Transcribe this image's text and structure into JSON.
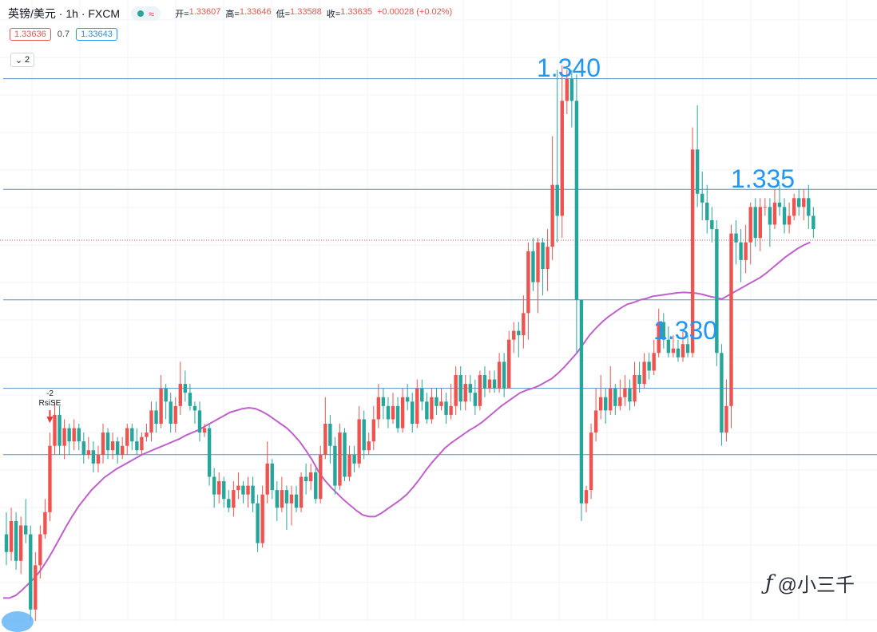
{
  "header": {
    "symbol": "英镑/美元",
    "separator": "·",
    "interval": "1h",
    "exchange": "FXCM",
    "status_wave": "≈",
    "ohlc": [
      {
        "label": "开=",
        "value": "1.33607"
      },
      {
        "label": "高=",
        "value": "1.33646"
      },
      {
        "label": "低=",
        "value": "1.33588"
      },
      {
        "label": "收=",
        "value": "1.33635"
      },
      {
        "label": "",
        "value": "+0.00028 (+0.02%)"
      }
    ]
  },
  "quote": {
    "bid": "1.33636",
    "spread": "0.7",
    "ask": "1.33643"
  },
  "indicators_toggle": {
    "icon": "chevron-down-icon",
    "count": "2"
  },
  "colors": {
    "up": "#ef5350",
    "down": "#26a69a",
    "ma": "#c061cb",
    "hline": "#2962ff",
    "level_text": "#2196f3"
  },
  "annotations": {
    "rsi_count": "-2",
    "rsi_label": "RsiSE"
  },
  "levels": [
    {
      "label": "1.340"
    },
    {
      "label": "1.335"
    },
    {
      "label": "1.330"
    }
  ],
  "watermark": {
    "icon": "logo-icon",
    "text": "@小三千"
  },
  "chart_data": {
    "type": "candlestick",
    "candles": [
      [
        1.3297,
        1.3293,
        1.3302,
        1.329
      ],
      [
        1.3293,
        1.33,
        1.3303,
        1.3291
      ],
      [
        1.33,
        1.3291,
        1.3302,
        1.3289
      ],
      [
        1.3291,
        1.3299,
        1.3301,
        1.3288
      ],
      [
        1.3299,
        1.3297,
        1.3305,
        1.3295
      ],
      [
        1.3297,
        1.328,
        1.3299,
        1.3275
      ],
      [
        1.328,
        1.329,
        1.3293,
        1.3276
      ],
      [
        1.329,
        1.3297,
        1.3299,
        1.3287
      ],
      [
        1.3297,
        1.3302,
        1.3305,
        1.3296
      ],
      [
        1.3302,
        1.3317,
        1.332,
        1.33
      ],
      [
        1.3317,
        1.3324,
        1.3327,
        1.3315
      ],
      [
        1.3324,
        1.3317,
        1.3326,
        1.3315
      ],
      [
        1.3317,
        1.3321,
        1.3323,
        1.3314
      ],
      [
        1.3321,
        1.3318,
        1.3322,
        1.3315
      ],
      [
        1.3318,
        1.3321,
        1.3323,
        1.3316
      ],
      [
        1.3321,
        1.3318,
        1.3322,
        1.3316
      ],
      [
        1.3318,
        1.3315,
        1.332,
        1.3313
      ],
      [
        1.3315,
        1.3316,
        1.3319,
        1.3314
      ],
      [
        1.3316,
        1.3313,
        1.3318,
        1.3311
      ],
      [
        1.3313,
        1.3315,
        1.3317,
        1.3311
      ],
      [
        1.3315,
        1.332,
        1.3322,
        1.3313
      ],
      [
        1.332,
        1.3316,
        1.3321,
        1.3314
      ],
      [
        1.3316,
        1.3318,
        1.332,
        1.3314
      ],
      [
        1.3318,
        1.3315,
        1.3319,
        1.3313
      ],
      [
        1.3315,
        1.3317,
        1.3319,
        1.3314
      ],
      [
        1.3317,
        1.3321,
        1.3322,
        1.3315
      ],
      [
        1.3321,
        1.3318,
        1.3322,
        1.3316
      ],
      [
        1.3318,
        1.3316,
        1.3321,
        1.3315
      ],
      [
        1.3316,
        1.3319,
        1.332,
        1.3315
      ],
      [
        1.3319,
        1.332,
        1.3322,
        1.3318
      ],
      [
        1.332,
        1.3325,
        1.3327,
        1.3318
      ],
      [
        1.3325,
        1.3322,
        1.3327,
        1.332
      ],
      [
        1.3322,
        1.333,
        1.3333,
        1.3321
      ],
      [
        1.333,
        1.3327,
        1.3331,
        1.3323
      ],
      [
        1.3327,
        1.3322,
        1.3329,
        1.332
      ],
      [
        1.3322,
        1.3326,
        1.3328,
        1.332
      ],
      [
        1.3326,
        1.3331,
        1.3336,
        1.3324
      ],
      [
        1.3331,
        1.3329,
        1.3334,
        1.3327
      ],
      [
        1.3329,
        1.3326,
        1.3331,
        1.3325
      ],
      [
        1.3326,
        1.3325,
        1.3327,
        1.3322
      ],
      [
        1.3325,
        1.332,
        1.3327,
        1.3318
      ],
      [
        1.332,
        1.3321,
        1.3322,
        1.3319
      ],
      [
        1.3321,
        1.331,
        1.3322,
        1.3308
      ],
      [
        1.331,
        1.3306,
        1.3312,
        1.3303
      ],
      [
        1.3306,
        1.3309,
        1.3311,
        1.3304
      ],
      [
        1.3309,
        1.3305,
        1.331,
        1.3303
      ],
      [
        1.3305,
        1.3303,
        1.3307,
        1.3302
      ],
      [
        1.3303,
        1.3307,
        1.3309,
        1.3301
      ],
      [
        1.3307,
        1.3308,
        1.3311,
        1.3305
      ],
      [
        1.3308,
        1.3306,
        1.3309,
        1.3304
      ],
      [
        1.3306,
        1.3308,
        1.331,
        1.3303
      ],
      [
        1.3308,
        1.3304,
        1.331,
        1.3302
      ],
      [
        1.3304,
        1.3295,
        1.3306,
        1.3293
      ],
      [
        1.3295,
        1.3306,
        1.3308,
        1.3294
      ],
      [
        1.3306,
        1.3313,
        1.3318,
        1.3304
      ],
      [
        1.3313,
        1.3307,
        1.3314,
        1.3305
      ],
      [
        1.3307,
        1.3303,
        1.3309,
        1.33
      ],
      [
        1.3303,
        1.3307,
        1.331,
        1.3302
      ],
      [
        1.3307,
        1.3304,
        1.3308,
        1.3298
      ],
      [
        1.3304,
        1.3306,
        1.3308,
        1.3299
      ],
      [
        1.3306,
        1.3303,
        1.3308,
        1.3302
      ],
      [
        1.3303,
        1.331,
        1.3311,
        1.3302
      ],
      [
        1.331,
        1.3309,
        1.3313,
        1.3306
      ],
      [
        1.3309,
        1.3311,
        1.3313,
        1.3307
      ],
      [
        1.3311,
        1.3305,
        1.3312,
        1.3304
      ],
      [
        1.3305,
        1.3315,
        1.3317,
        1.3304
      ],
      [
        1.3315,
        1.3322,
        1.3328,
        1.3314
      ],
      [
        1.3322,
        1.3317,
        1.3324,
        1.3313
      ],
      [
        1.3317,
        1.3308,
        1.3319,
        1.3306
      ],
      [
        1.3308,
        1.332,
        1.3322,
        1.3307
      ],
      [
        1.332,
        1.331,
        1.3321,
        1.3309
      ],
      [
        1.331,
        1.3315,
        1.3317,
        1.3309
      ],
      [
        1.3315,
        1.3313,
        1.3317,
        1.3311
      ],
      [
        1.3313,
        1.3323,
        1.3326,
        1.3312
      ],
      [
        1.3323,
        1.3316,
        1.3325,
        1.3314
      ],
      [
        1.3316,
        1.3318,
        1.332,
        1.3315
      ],
      [
        1.3318,
        1.3323,
        1.3326,
        1.3316
      ],
      [
        1.3323,
        1.3328,
        1.3331,
        1.3321
      ],
      [
        1.3328,
        1.3326,
        1.333,
        1.3323
      ],
      [
        1.3326,
        1.3323,
        1.3328,
        1.3321
      ],
      [
        1.3323,
        1.3326,
        1.3329,
        1.3322
      ],
      [
        1.3326,
        1.3321,
        1.3328,
        1.332
      ],
      [
        1.3321,
        1.3328,
        1.333,
        1.332
      ],
      [
        1.3328,
        1.3327,
        1.3331,
        1.3325
      ],
      [
        1.3327,
        1.3322,
        1.3329,
        1.332
      ],
      [
        1.3322,
        1.333,
        1.3332,
        1.3321
      ],
      [
        1.333,
        1.3327,
        1.3332,
        1.3325
      ],
      [
        1.3327,
        1.3323,
        1.3329,
        1.3322
      ],
      [
        1.3323,
        1.3328,
        1.333,
        1.3322
      ],
      [
        1.3328,
        1.3326,
        1.333,
        1.3324
      ],
      [
        1.3326,
        1.3327,
        1.333,
        1.3325
      ],
      [
        1.3327,
        1.3324,
        1.3329,
        1.3322
      ],
      [
        1.3324,
        1.3326,
        1.3331,
        1.3323
      ],
      [
        1.3326,
        1.3333,
        1.3335,
        1.3324
      ],
      [
        1.3333,
        1.3327,
        1.3335,
        1.3325
      ],
      [
        1.3327,
        1.3331,
        1.3333,
        1.3325
      ],
      [
        1.3331,
        1.3329,
        1.3333,
        1.3327
      ],
      [
        1.3329,
        1.3326,
        1.3332,
        1.3324
      ],
      [
        1.3326,
        1.3333,
        1.3334,
        1.3325
      ],
      [
        1.3333,
        1.333,
        1.3335,
        1.3328
      ],
      [
        1.333,
        1.3332,
        1.3334,
        1.3329
      ],
      [
        1.3332,
        1.333,
        1.3334,
        1.3329
      ],
      [
        1.333,
        1.3336,
        1.3338,
        1.3329
      ],
      [
        1.3336,
        1.333,
        1.3338,
        1.3328
      ],
      [
        1.333,
        1.3341,
        1.3343,
        1.333
      ],
      [
        1.3341,
        1.3343,
        1.3345,
        1.3338
      ],
      [
        1.3343,
        1.3342,
        1.3345,
        1.3337
      ],
      [
        1.3342,
        1.3347,
        1.3351,
        1.3339
      ],
      [
        1.3347,
        1.3361,
        1.3363,
        1.3341
      ],
      [
        1.3361,
        1.3354,
        1.3364,
        1.3352
      ],
      [
        1.3354,
        1.3363,
        1.3364,
        1.3347
      ],
      [
        1.3363,
        1.3357,
        1.3364,
        1.3351
      ],
      [
        1.3357,
        1.3362,
        1.3366,
        1.3352
      ],
      [
        1.3362,
        1.3376,
        1.3387,
        1.3359
      ],
      [
        1.3376,
        1.3369,
        1.3402,
        1.3363
      ],
      [
        1.3369,
        1.3395,
        1.3403,
        1.3364
      ],
      [
        1.3395,
        1.34,
        1.3402,
        1.3392
      ],
      [
        1.34,
        1.3395,
        1.3402,
        1.3389
      ],
      [
        1.3395,
        1.335,
        1.3401,
        1.3338
      ],
      [
        1.335,
        1.3304,
        1.335,
        1.33
      ],
      [
        1.3304,
        1.3307,
        1.3308,
        1.3302
      ],
      [
        1.3307,
        1.332,
        1.3322,
        1.3305
      ],
      [
        1.332,
        1.3325,
        1.333,
        1.3318
      ],
      [
        1.3325,
        1.3328,
        1.3333,
        1.3323
      ],
      [
        1.3328,
        1.3325,
        1.333,
        1.3322
      ],
      [
        1.3325,
        1.333,
        1.3335,
        1.3324
      ],
      [
        1.333,
        1.3326,
        1.3331,
        1.3324
      ],
      [
        1.3326,
        1.3328,
        1.3332,
        1.3325
      ],
      [
        1.3328,
        1.333,
        1.3333,
        1.3326
      ],
      [
        1.333,
        1.3327,
        1.3332,
        1.3325
      ],
      [
        1.3327,
        1.3333,
        1.3336,
        1.3326
      ],
      [
        1.3333,
        1.3331,
        1.3336,
        1.3329
      ],
      [
        1.3331,
        1.3336,
        1.3338,
        1.333
      ],
      [
        1.3336,
        1.3334,
        1.3338,
        1.3332
      ],
      [
        1.3334,
        1.3338,
        1.3341,
        1.3333
      ],
      [
        1.3338,
        1.3345,
        1.3348,
        1.3337
      ],
      [
        1.3345,
        1.3341,
        1.3347,
        1.3339
      ],
      [
        1.3341,
        1.3338,
        1.3344,
        1.3337
      ],
      [
        1.3338,
        1.3339,
        1.3342,
        1.3337
      ],
      [
        1.3339,
        1.3337,
        1.3341,
        1.3336
      ],
      [
        1.3337,
        1.334,
        1.3343,
        1.3336
      ],
      [
        1.334,
        1.3338,
        1.3342,
        1.3337
      ],
      [
        1.3338,
        1.3384,
        1.3389,
        1.3337
      ],
      [
        1.3384,
        1.3374,
        1.3394,
        1.3371
      ],
      [
        1.3374,
        1.3372,
        1.3379,
        1.3368
      ],
      [
        1.3372,
        1.3368,
        1.3376,
        1.3365
      ],
      [
        1.3368,
        1.3366,
        1.3371,
        1.3363
      ],
      [
        1.3366,
        1.3338,
        1.3368,
        1.3335
      ],
      [
        1.3338,
        1.332,
        1.334,
        1.3317
      ],
      [
        1.332,
        1.3326,
        1.3332,
        1.3318
      ],
      [
        1.3326,
        1.3365,
        1.3367,
        1.3321
      ],
      [
        1.3365,
        1.3363,
        1.3368,
        1.3358
      ],
      [
        1.3363,
        1.3359,
        1.3366,
        1.3354
      ],
      [
        1.3359,
        1.3363,
        1.3367,
        1.3356
      ],
      [
        1.3363,
        1.3371,
        1.3372,
        1.3358
      ],
      [
        1.3371,
        1.3364,
        1.3373,
        1.3362
      ],
      [
        1.3364,
        1.3371,
        1.3373,
        1.3361
      ],
      [
        1.3371,
        1.3371,
        1.3373,
        1.3369
      ],
      [
        1.3371,
        1.3367,
        1.3373,
        1.3362
      ],
      [
        1.3367,
        1.3372,
        1.3375,
        1.3366
      ],
      [
        1.3372,
        1.3371,
        1.3376,
        1.3369
      ],
      [
        1.3371,
        1.3367,
        1.3373,
        1.3365
      ],
      [
        1.3367,
        1.3369,
        1.3372,
        1.3365
      ],
      [
        1.3369,
        1.3373,
        1.3374,
        1.3368
      ],
      [
        1.3373,
        1.3371,
        1.3375,
        1.3369
      ],
      [
        1.3371,
        1.3373,
        1.3375,
        1.3368
      ],
      [
        1.3373,
        1.3369,
        1.3376,
        1.3366
      ],
      [
        1.3369,
        1.3366,
        1.3371,
        1.3364
      ]
    ],
    "ma_curve": [
      1.32826,
      1.32826,
      1.32832,
      1.32844,
      1.32858,
      1.32872,
      1.3289,
      1.32912,
      1.32936,
      1.32962,
      1.32988,
      1.33012,
      1.33034,
      1.33052,
      1.3307,
      1.33084,
      1.33098,
      1.33108,
      1.33118,
      1.33126,
      1.33134,
      1.33142,
      1.3315,
      1.33156,
      1.33162,
      1.33168,
      1.33174,
      1.3318,
      1.33186,
      1.33194,
      1.332,
      1.33206,
      1.33214,
      1.33222,
      1.3323,
      1.33238,
      1.33246,
      1.3325,
      1.33254,
      1.33256,
      1.33254,
      1.33248,
      1.3324,
      1.3323,
      1.3322,
      1.3321,
      1.33196,
      1.3318,
      1.3316,
      1.33138,
      1.33112,
      1.33092,
      1.33076,
      1.33062,
      1.33048,
      1.33036,
      1.33024,
      1.33014,
      1.3301,
      1.3301,
      1.33018,
      1.33028,
      1.33038,
      1.33048,
      1.3306,
      1.33076,
      1.33094,
      1.33114,
      1.33132,
      1.33148,
      1.33164,
      1.33176,
      1.33186,
      1.33196,
      1.33206,
      1.33214,
      1.33224,
      1.33236,
      1.33248,
      1.3326,
      1.3327,
      1.3328,
      1.3329,
      1.33296,
      1.333,
      1.33306,
      1.33314,
      1.33322,
      1.33334,
      1.33348,
      1.33364,
      1.3338,
      1.334,
      1.3342,
      1.33436,
      1.3345,
      1.33462,
      1.33472,
      1.33482,
      1.3349,
      1.33494,
      1.335,
      1.33503,
      1.33508,
      1.3351,
      1.33512,
      1.33514,
      1.33516,
      1.33517,
      1.33516,
      1.33515,
      1.33512,
      1.33508,
      1.33505,
      1.33502,
      1.3351,
      1.33518,
      1.33526,
      1.33534,
      1.33542,
      1.3355,
      1.3356,
      1.33572,
      1.33584,
      1.33596,
      1.33606,
      1.33616,
      1.33624,
      1.3363
    ],
    "horizontal_levels": [
      1.34,
      1.3375,
      1.335,
      1.333,
      1.3315
    ],
    "current_price": 1.33635,
    "last_value_line_color": "#ef5350",
    "y_range": [
      1.3287,
      1.3403
    ],
    "grid": true,
    "markers": [
      {
        "candle_index": 9,
        "type": "signal-arrow-down"
      }
    ]
  }
}
